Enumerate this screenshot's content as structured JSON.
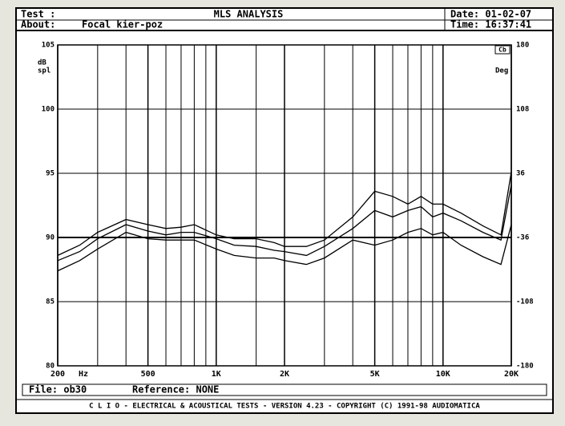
{
  "header": {
    "test_label": "Test :",
    "title": "MLS ANALYSIS",
    "date": "Date: 01-02-07",
    "about_label": "About:",
    "about": "Focal kier-poz",
    "time": "Time: 16:37:41"
  },
  "chart_data": {
    "type": "line",
    "log_x": true,
    "xlim": [
      200,
      20000
    ],
    "xticks": [
      200,
      500,
      {
        "value": 1000,
        "label": "1K"
      },
      {
        "value": 2000,
        "label": "2K"
      },
      {
        "value": 5000,
        "label": "5K"
      },
      {
        "value": 10000,
        "label": "10K"
      },
      {
        "value": 20000,
        "label": "20K"
      }
    ],
    "xgrid": [
      300,
      400,
      600,
      700,
      800,
      900,
      1500,
      3000,
      4000,
      6000,
      7000,
      8000,
      9000
    ],
    "x_unit": "Hz",
    "ylim": [
      80,
      105
    ],
    "yticks": [
      105,
      100,
      95,
      90,
      85,
      80
    ],
    "y_ref": 90,
    "ylabel": [
      "dB",
      "spl"
    ],
    "y2lim": [
      -180,
      180
    ],
    "y2ticks": [
      180,
      108,
      36,
      -36,
      -108,
      -180
    ],
    "y2label": "Deg",
    "marker": "Cb",
    "x": [
      200,
      250,
      300,
      400,
      500,
      600,
      700,
      800,
      1000,
      1200,
      1500,
      1800,
      2000,
      2500,
      3000,
      4000,
      5000,
      6000,
      7000,
      8000,
      9000,
      10000,
      12000,
      15000,
      18000,
      20000
    ],
    "series": [
      {
        "color": "#000000",
        "values": [
          88.6,
          89.4,
          90.4,
          91.4,
          91.0,
          90.7,
          90.8,
          91.0,
          90.2,
          89.9,
          89.9,
          89.6,
          89.3,
          89.3,
          89.8,
          91.6,
          93.6,
          93.2,
          92.6,
          93.2,
          92.6,
          92.6,
          91.9,
          90.9,
          90.2,
          95.1
        ]
      },
      {
        "color": "#000000",
        "values": [
          88.2,
          88.9,
          89.9,
          91.0,
          90.5,
          90.2,
          90.4,
          90.4,
          89.9,
          89.4,
          89.3,
          89.0,
          88.9,
          88.6,
          89.3,
          90.7,
          92.1,
          91.6,
          92.1,
          92.4,
          91.6,
          91.9,
          91.3,
          90.4,
          89.8,
          94.1
        ]
      },
      {
        "color": "#000000",
        "values": [
          87.4,
          88.2,
          89.1,
          90.4,
          89.9,
          89.8,
          89.8,
          89.8,
          89.1,
          88.6,
          88.4,
          88.4,
          88.2,
          87.9,
          88.4,
          89.8,
          89.4,
          89.8,
          90.4,
          90.7,
          90.2,
          90.4,
          89.4,
          88.5,
          87.9,
          91.0
        ]
      }
    ]
  },
  "footer": {
    "file": "File: ob30",
    "reference": "Reference: NONE",
    "credits": "C L I O  -  ELECTRICAL & ACOUSTICAL TESTS  -  VERSION 4.23  -  COPYRIGHT (C) 1991-98 AUDIOMATICA"
  }
}
